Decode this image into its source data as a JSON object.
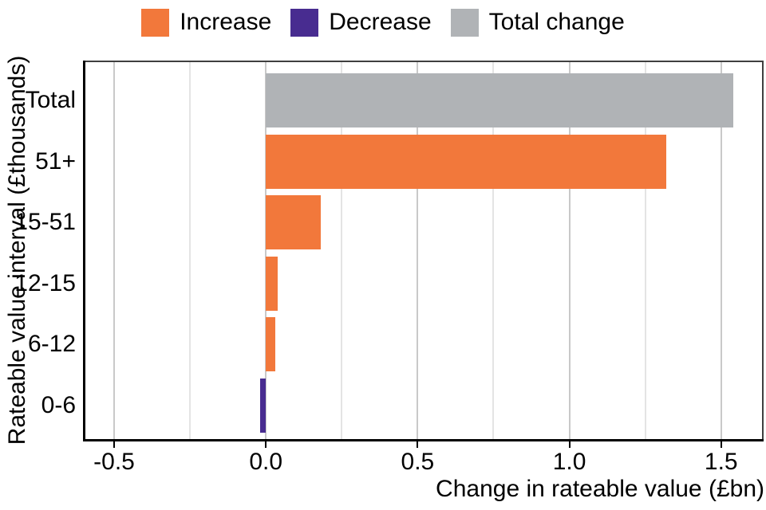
{
  "chart_data": {
    "type": "bar",
    "orientation": "horizontal",
    "title": "",
    "xlabel": "Change in rateable value (£bn)",
    "ylabel": "Rateable value interval (£thousands)",
    "categories": [
      "Total",
      "51+",
      "15-51",
      "12-15",
      "6-12",
      "0-6"
    ],
    "bars": [
      {
        "category": "Total",
        "series": "Total change",
        "value": 1.54
      },
      {
        "category": "51+",
        "series": "Increase",
        "value": 1.32
      },
      {
        "category": "15-51",
        "series": "Increase",
        "value": 0.18
      },
      {
        "category": "12-15",
        "series": "Increase",
        "value": 0.04
      },
      {
        "category": "6-12",
        "series": "Increase",
        "value": 0.03
      },
      {
        "category": "0-6",
        "series": "Decrease",
        "value": -0.02
      }
    ],
    "x_major_ticks": [
      -0.5,
      0,
      0.5,
      1,
      1.5
    ],
    "x_major_tick_labels": [
      "-0.5",
      "0.0",
      "0.5",
      "1.0",
      "1.5"
    ],
    "x_minor_ticks": [
      -0.25,
      0.25,
      0.75,
      1.25
    ],
    "xlim": [
      -0.6,
      1.64
    ],
    "grid": "vertical major and minor gridlines",
    "legend_position": "top"
  },
  "legend": {
    "items": [
      {
        "label": "Increase",
        "color": "#F2783B"
      },
      {
        "label": "Decrease",
        "color": "#482C90"
      },
      {
        "label": "Total change",
        "color": "#B0B3B6"
      }
    ]
  },
  "colors": {
    "increase": "#F2783B",
    "decrease": "#482C90",
    "total_change": "#B0B3B6",
    "grid_major": "#C9C9C9",
    "grid_minor": "#E4E4E4",
    "axis_line": "#000000",
    "panel_border": "#3F3F3F",
    "text": "#000000",
    "background": "#FFFFFF"
  }
}
